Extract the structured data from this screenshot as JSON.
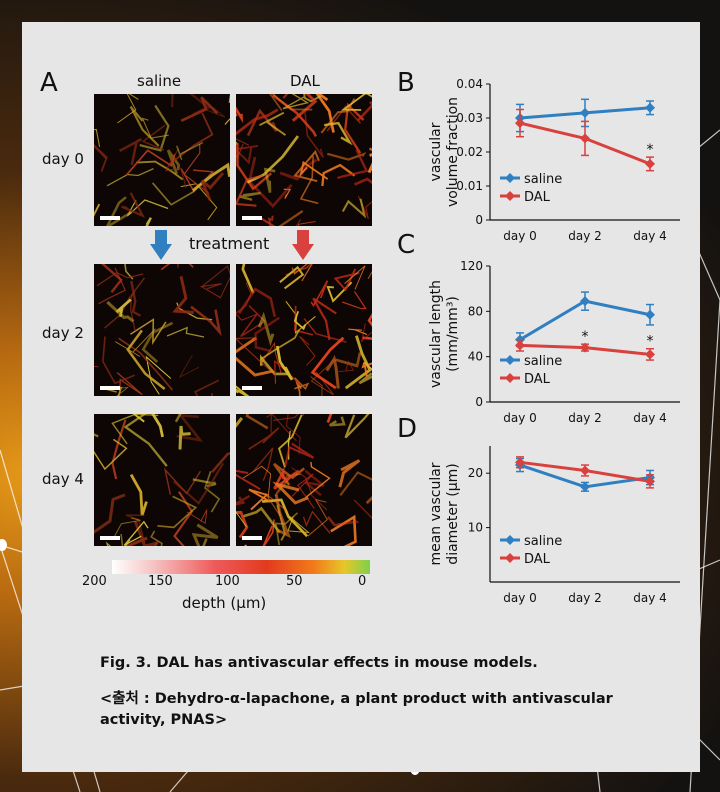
{
  "figure": {
    "panel_letters": [
      "A",
      "B",
      "C",
      "D"
    ],
    "columns": [
      "saline",
      "DAL"
    ],
    "rows": [
      "day 0",
      "day 2",
      "day 4"
    ],
    "treatment_label": "treatment",
    "depth_label": "depth (μm)",
    "depth_ticks": [
      "200",
      "150",
      "100",
      "50",
      "0"
    ],
    "caption_line1": "Fig. 3. DAL has antivascular effects in mouse models.",
    "caption_line2": "<출처 : Dehydro-α-lapachone, a plant product with antivascular",
    "caption_line3": "activity, PNAS>"
  },
  "chart_data": [
    {
      "type": "line",
      "panel": "B",
      "ylabel": [
        "vascular",
        "volume fraction"
      ],
      "categories": [
        "day 0",
        "day 2",
        "day 4"
      ],
      "ylim": [
        0,
        0.04
      ],
      "yticks": [
        "0",
        "0.01",
        "0.02",
        "0.03",
        "0.04"
      ],
      "series": [
        {
          "name": "saline",
          "color": "#2f7fc1",
          "values": [
            0.03,
            0.0315,
            0.033
          ],
          "err": [
            0.004,
            0.004,
            0.002
          ]
        },
        {
          "name": "DAL",
          "color": "#d9413f",
          "values": [
            0.0285,
            0.024,
            0.0165
          ],
          "err": [
            0.004,
            0.005,
            0.002
          ]
        }
      ],
      "significance": [
        "",
        "",
        "*"
      ]
    },
    {
      "type": "line",
      "panel": "C",
      "ylabel": [
        "vascular length",
        "(mm/mm³)"
      ],
      "categories": [
        "day 0",
        "day 2",
        "day 4"
      ],
      "ylim": [
        0,
        120
      ],
      "yticks": [
        "0",
        "40",
        "80",
        "120"
      ],
      "series": [
        {
          "name": "saline",
          "color": "#2f7fc1",
          "values": [
            55,
            89,
            77
          ],
          "err": [
            6,
            8,
            9
          ]
        },
        {
          "name": "DAL",
          "color": "#d9413f",
          "values": [
            50,
            48,
            42
          ],
          "err": [
            5,
            3,
            5
          ]
        }
      ],
      "significance": [
        "",
        "*",
        "*"
      ]
    },
    {
      "type": "line",
      "panel": "D",
      "ylabel": [
        "mean vascular",
        "diameter (μm)"
      ],
      "categories": [
        "day 0",
        "day 2",
        "day 4"
      ],
      "ylim": [
        0,
        25
      ],
      "yticks": [
        "10",
        "20"
      ],
      "series": [
        {
          "name": "saline",
          "color": "#2f7fc1",
          "values": [
            21.5,
            17.5,
            19.2
          ],
          "err": [
            1.2,
            0.8,
            1.3
          ]
        },
        {
          "name": "DAL",
          "color": "#d9413f",
          "values": [
            22,
            20.5,
            18.5
          ],
          "err": [
            1,
            1,
            1.2
          ]
        }
      ],
      "significance": [
        "",
        "",
        ""
      ]
    }
  ]
}
